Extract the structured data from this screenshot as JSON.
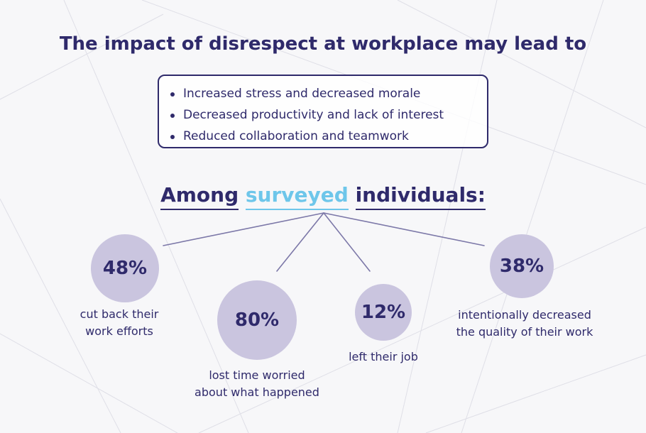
{
  "title": "The impact of disrespect at workplace may lead to",
  "impacts": {
    "items": [
      "Increased stress and decreased morale",
      "Decreased productivity and lack of interest",
      "Reduced collaboration and teamwork"
    ]
  },
  "survey": {
    "heading_prefix": "Among",
    "heading_highlight": "surveyed",
    "heading_suffix": "individuals:",
    "stats": [
      {
        "value": "48%",
        "label_lines": [
          "cut back their",
          "work efforts"
        ]
      },
      {
        "value": "80%",
        "label_lines": [
          "lost time worried",
          "about what happened"
        ]
      },
      {
        "value": "12%",
        "label_lines": [
          "left their job"
        ]
      },
      {
        "value": "38%",
        "label_lines": [
          "intentionally decreased",
          "the quality of their work"
        ]
      }
    ]
  },
  "colors": {
    "primary": "#2f2a6b",
    "accent": "#6ec6ea",
    "circle": "#cac5df",
    "background": "#f7f7f9"
  }
}
